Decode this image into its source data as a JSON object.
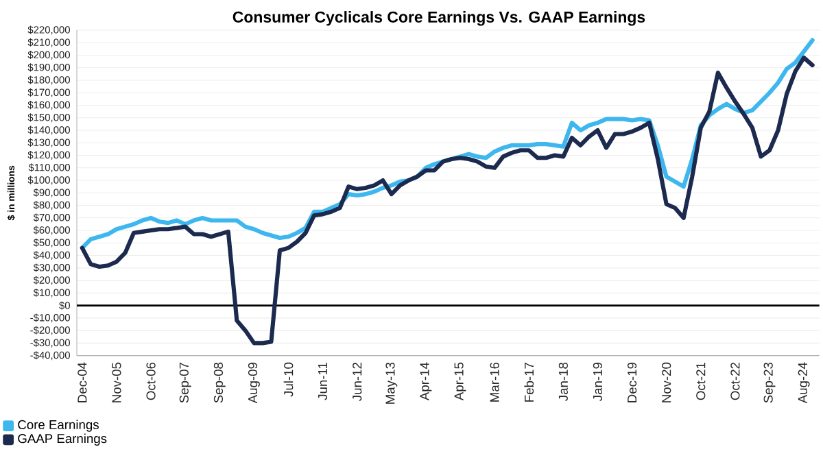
{
  "chart_data": {
    "type": "line",
    "title": "Consumer Cyclicals Core Earnings Vs. GAAP Earnings",
    "ylabel": "$ in millions",
    "categories": [
      "Dec-04",
      null,
      null,
      null,
      "Nov-05",
      null,
      null,
      null,
      "Oct-06",
      null,
      null,
      null,
      "Sep-07",
      null,
      null,
      null,
      "Sep-08",
      null,
      null,
      null,
      "Aug-09",
      null,
      null,
      null,
      "Jul-10",
      null,
      null,
      null,
      "Jun-11",
      null,
      null,
      null,
      "Jun-12",
      null,
      null,
      null,
      "May-13",
      null,
      null,
      null,
      "Apr-14",
      null,
      null,
      null,
      "Apr-15",
      null,
      null,
      null,
      "Mar-16",
      null,
      null,
      null,
      "Feb-17",
      null,
      null,
      null,
      "Jan-18",
      null,
      null,
      null,
      "Jan-19",
      null,
      null,
      null,
      "Dec-19",
      null,
      null,
      null,
      "Nov-20",
      null,
      null,
      null,
      "Oct-21",
      null,
      null,
      null,
      "Oct-22",
      null,
      null,
      null,
      "Sep-23",
      null,
      null,
      null,
      "Aug-24",
      null
    ],
    "series": [
      {
        "name": "Core Earnings",
        "color": "#3db7ee",
        "values": [
          46000,
          53000,
          55000,
          57000,
          61000,
          63000,
          65000,
          68000,
          70000,
          67000,
          66000,
          68000,
          65000,
          68000,
          70000,
          68000,
          68000,
          68000,
          68000,
          63000,
          61000,
          58000,
          56000,
          54000,
          55000,
          58000,
          62000,
          75000,
          75000,
          78000,
          81000,
          89000,
          88000,
          89000,
          91000,
          94000,
          96000,
          99000,
          100000,
          103000,
          110000,
          113000,
          115000,
          117000,
          119000,
          121000,
          119000,
          118000,
          123000,
          126000,
          128000,
          128000,
          128000,
          129000,
          129000,
          128000,
          127000,
          146000,
          140000,
          144000,
          146000,
          149000,
          149000,
          149000,
          148000,
          149000,
          148000,
          128000,
          103000,
          99000,
          95000,
          117000,
          144000,
          152000,
          157000,
          161000,
          157000,
          154000,
          156000,
          163000,
          170000,
          178000,
          189000,
          194000,
          203000,
          212000
        ]
      },
      {
        "name": "GAAP Earnings",
        "color": "#1b2a4e",
        "values": [
          46000,
          33000,
          31000,
          32000,
          35000,
          42000,
          58000,
          59000,
          60000,
          61000,
          61000,
          62000,
          63000,
          57000,
          57000,
          55000,
          57000,
          59000,
          -12000,
          -20000,
          -30000,
          -30000,
          -29000,
          44000,
          46000,
          51000,
          58000,
          72000,
          73000,
          75000,
          78000,
          95000,
          93000,
          94000,
          96000,
          100000,
          89000,
          96000,
          100000,
          103000,
          108000,
          108000,
          115000,
          117000,
          118000,
          117000,
          115000,
          111000,
          110000,
          119000,
          122000,
          124000,
          124000,
          118000,
          118000,
          120000,
          119000,
          134000,
          128000,
          135000,
          140000,
          126000,
          137000,
          137000,
          139000,
          142000,
          146000,
          117000,
          81000,
          78000,
          70000,
          103000,
          142000,
          155000,
          186000,
          174000,
          163000,
          153000,
          142000,
          119000,
          124000,
          140000,
          169000,
          187000,
          198000,
          192000
        ]
      }
    ],
    "ylim": [
      -40000,
      220000
    ],
    "yticks": [
      {
        "value": -40000,
        "label": "-$40,000"
      },
      {
        "value": -30000,
        "label": "-$30,000"
      },
      {
        "value": -20000,
        "label": "-$20,000"
      },
      {
        "value": -10000,
        "label": "-$10,000"
      },
      {
        "value": 0,
        "label": "$0"
      },
      {
        "value": 10000,
        "label": "$10,000"
      },
      {
        "value": 20000,
        "label": "$20,000"
      },
      {
        "value": 30000,
        "label": "$30,000"
      },
      {
        "value": 40000,
        "label": "$40,000"
      },
      {
        "value": 50000,
        "label": "$50,000"
      },
      {
        "value": 60000,
        "label": "$60,000"
      },
      {
        "value": 70000,
        "label": "$70,000"
      },
      {
        "value": 80000,
        "label": "$80,000"
      },
      {
        "value": 90000,
        "label": "$90,000"
      },
      {
        "value": 100000,
        "label": "$100,000"
      },
      {
        "value": 110000,
        "label": "$110,000"
      },
      {
        "value": 120000,
        "label": "$120,000"
      },
      {
        "value": 130000,
        "label": "$130,000"
      },
      {
        "value": 140000,
        "label": "$140,000"
      },
      {
        "value": 150000,
        "label": "$150,000"
      },
      {
        "value": 160000,
        "label": "$160,000"
      },
      {
        "value": 170000,
        "label": "$170,000"
      },
      {
        "value": 180000,
        "label": "$180,000"
      },
      {
        "value": 190000,
        "label": "$190,000"
      },
      {
        "value": 200000,
        "label": "$200,000"
      },
      {
        "value": 210000,
        "label": "$210,000"
      },
      {
        "value": 220000,
        "label": "$220,000"
      }
    ],
    "ref_lines": [
      {
        "axis": "y",
        "value": 0,
        "color": "#000000"
      }
    ],
    "grid": "y",
    "legend": "bottom left"
  }
}
